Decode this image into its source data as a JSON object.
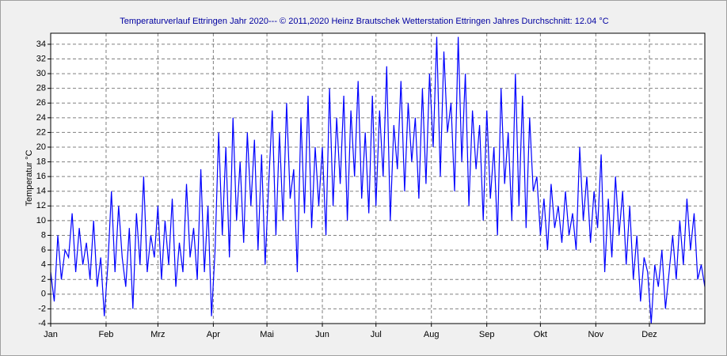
{
  "chart_data": {
    "type": "line",
    "title": "Temperaturverlauf Ettringen Jahr 2020--- © 2011,2020 Heinz Brautschek Wetterstation Ettringen Jahres Durchschnitt: 12.04 °C",
    "y_label": "Temperatur °C",
    "color": "#0000ff",
    "grid": true,
    "xlim": [
      0,
      366
    ],
    "xticks": [
      {
        "value": 0,
        "label": "Jan"
      },
      {
        "value": 31,
        "label": "Feb"
      },
      {
        "value": 60,
        "label": "Mrz"
      },
      {
        "value": 91,
        "label": "Apr"
      },
      {
        "value": 121,
        "label": "Mai"
      },
      {
        "value": 152,
        "label": "Jun"
      },
      {
        "value": 182,
        "label": "Jul"
      },
      {
        "value": 213,
        "label": "Aug"
      },
      {
        "value": 244,
        "label": "Sep"
      },
      {
        "value": 274,
        "label": "Okt"
      },
      {
        "value": 305,
        "label": "Nov"
      },
      {
        "value": 335,
        "label": "Dez"
      }
    ],
    "ylim": [
      -4,
      35.5
    ],
    "yticks": [
      -4,
      -2,
      0,
      2,
      4,
      6,
      8,
      10,
      12,
      14,
      16,
      18,
      20,
      22,
      24,
      26,
      28,
      30,
      32,
      34
    ],
    "x": [
      0,
      2,
      4,
      6,
      8,
      10,
      12,
      14,
      16,
      18,
      20,
      22,
      24,
      26,
      28,
      30,
      32,
      34,
      36,
      38,
      40,
      42,
      44,
      46,
      48,
      50,
      52,
      54,
      56,
      58,
      60,
      62,
      64,
      66,
      68,
      70,
      72,
      74,
      76,
      78,
      80,
      82,
      84,
      86,
      88,
      90,
      92,
      94,
      96,
      98,
      100,
      102,
      104,
      106,
      108,
      110,
      112,
      114,
      116,
      118,
      120,
      122,
      124,
      126,
      128,
      130,
      132,
      134,
      136,
      138,
      140,
      142,
      144,
      146,
      148,
      150,
      152,
      154,
      156,
      158,
      160,
      162,
      164,
      166,
      168,
      170,
      172,
      174,
      176,
      178,
      180,
      182,
      184,
      186,
      188,
      190,
      192,
      194,
      196,
      198,
      200,
      202,
      204,
      206,
      208,
      210,
      212,
      214,
      216,
      218,
      220,
      222,
      224,
      226,
      228,
      230,
      232,
      234,
      236,
      238,
      240,
      242,
      244,
      246,
      248,
      250,
      252,
      254,
      256,
      258,
      260,
      262,
      264,
      266,
      268,
      270,
      272,
      274,
      276,
      278,
      280,
      282,
      284,
      286,
      288,
      290,
      292,
      294,
      296,
      298,
      300,
      302,
      304,
      306,
      308,
      310,
      312,
      314,
      316,
      318,
      320,
      322,
      324,
      326,
      328,
      330,
      332,
      334,
      336,
      338,
      340,
      342,
      344,
      346,
      348,
      350,
      352,
      354,
      356,
      358,
      360,
      362,
      364,
      366
    ],
    "values": [
      3,
      -1,
      8,
      2,
      6,
      5,
      11,
      3,
      9,
      4,
      7,
      2,
      10,
      1,
      5,
      -3,
      4,
      14,
      3,
      12,
      5,
      1,
      9,
      -2,
      11,
      4,
      16,
      3,
      8,
      5,
      12,
      2,
      10,
      4,
      13,
      1,
      7,
      3,
      15,
      5,
      9,
      2,
      17,
      3,
      12,
      -3,
      6,
      22,
      8,
      20,
      5,
      24,
      10,
      18,
      7,
      22,
      12,
      21,
      6,
      19,
      4,
      15,
      25,
      8,
      22,
      10,
      26,
      13,
      17,
      3,
      24,
      11,
      27,
      9,
      20,
      12,
      20,
      8,
      28,
      12,
      24,
      15,
      27,
      10,
      25,
      16,
      29,
      13,
      22,
      11,
      27,
      12,
      25,
      16,
      31,
      10,
      23,
      17,
      29,
      14,
      26,
      18,
      24,
      13,
      28,
      15,
      30,
      20,
      35,
      16,
      33,
      22,
      26,
      14,
      35,
      18,
      30,
      12,
      25,
      17,
      23,
      10,
      25,
      13,
      20,
      8,
      28,
      15,
      22,
      10,
      30,
      12,
      27,
      9,
      24,
      14,
      16,
      8,
      13,
      6,
      15,
      9,
      12,
      7,
      14,
      8,
      11,
      6,
      20,
      10,
      16,
      7,
      14,
      9,
      19,
      3,
      13,
      5,
      16,
      8,
      14,
      4,
      12,
      2,
      8,
      -1,
      5,
      3,
      -4,
      4,
      1,
      6,
      -2,
      3,
      8,
      2,
      10,
      4,
      13,
      6,
      11,
      2,
      4,
      1
    ]
  }
}
